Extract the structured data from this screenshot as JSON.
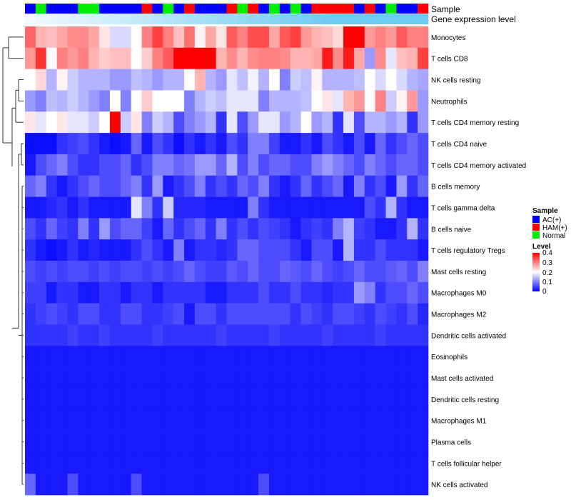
{
  "chart_data": {
    "type": "heatmap",
    "title": "",
    "annotation_tracks": [
      "Sample",
      "Gene expression level"
    ],
    "rows": [
      "Monocytes",
      "T cells CD8",
      "NK cells resting",
      "Neutrophils",
      "T cells CD4 memory resting",
      "T cells CD4 naive",
      "T cells CD4 memory activated",
      "B cells memory",
      "T cells gamma delta",
      "B cells naive",
      "T cells regulatory  Tregs",
      "Mast cells resting",
      "Macrophages M0",
      "Macrophages M2",
      "Dendritic cells activated",
      "Eosinophils",
      "Mast cells activated",
      "Dendritic cells resting",
      "Macrophages M1",
      "Plasma cells",
      "T cells follicular helper",
      "NK cells activated"
    ],
    "sample_groups": [
      "AC(+)",
      "Normal",
      "AC(+)",
      "AC(+)",
      "AC(+)",
      "Normal",
      "Normal",
      "AC(+)",
      "AC(+)",
      "AC(+)",
      "AC(+)",
      "HAM(+)",
      "AC(+)",
      "Normal",
      "AC(+)",
      "HAM(+)",
      "AC(+)",
      "AC(+)",
      "AC(+)",
      "HAM(+)",
      "Normal",
      "HAM(+)",
      "AC(+)",
      "Normal",
      "AC(+)",
      "Normal",
      "AC(+)",
      "HAM(+)",
      "HAM(+)",
      "HAM(+)",
      "HAM(+)",
      "AC(+)",
      "HAM(+)",
      "AC(+)",
      "Normal",
      "AC(+)",
      "AC(+)",
      "HAM(+)"
    ],
    "gene_expression_level": [
      0.05,
      0.08,
      0.1,
      0.12,
      0.14,
      0.16,
      0.18,
      0.2,
      0.22,
      0.24,
      0.26,
      0.28,
      0.3,
      0.32,
      0.34,
      0.36,
      0.38,
      0.4,
      0.42,
      0.44,
      0.46,
      0.48,
      0.5,
      0.52,
      0.54,
      0.56,
      0.58,
      0.6,
      0.62,
      0.64,
      0.66,
      0.68,
      0.7,
      0.72,
      0.74,
      0.76,
      0.78,
      0.8
    ],
    "values": [
      [
        0.32,
        0.26,
        0.25,
        0.27,
        0.29,
        0.29,
        0.27,
        0.22,
        0.17,
        0.17,
        0.2,
        0.3,
        0.35,
        0.3,
        0.25,
        0.31,
        0.21,
        0.27,
        0.22,
        0.33,
        0.3,
        0.34,
        0.34,
        0.27,
        0.33,
        0.35,
        0.28,
        0.26,
        0.25,
        0.23,
        0.4,
        0.4,
        0.28,
        0.3,
        0.28,
        0.33,
        0.3,
        0.3
      ],
      [
        0.28,
        0.36,
        0.2,
        0.3,
        0.28,
        0.3,
        0.26,
        0.24,
        0.25,
        0.25,
        0.2,
        0.24,
        0.3,
        0.33,
        0.4,
        0.4,
        0.4,
        0.4,
        0.26,
        0.29,
        0.26,
        0.29,
        0.3,
        0.3,
        0.29,
        0.26,
        0.26,
        0.27,
        0.38,
        0.29,
        0.38,
        0.27,
        0.12,
        0.29,
        0.18,
        0.25,
        0.26,
        0.35
      ],
      [
        0.2,
        0.23,
        0.14,
        0.21,
        0.16,
        0.14,
        0.14,
        0.14,
        0.12,
        0.12,
        0.15,
        0.14,
        0.12,
        0.14,
        0.14,
        0.2,
        0.26,
        0.14,
        0.12,
        0.18,
        0.15,
        0.19,
        0.14,
        0.2,
        0.1,
        0.16,
        0.15,
        0.21,
        0.14,
        0.14,
        0.14,
        0.15,
        0.2,
        0.17,
        0.2,
        0.17,
        0.14,
        0.13
      ],
      [
        0.12,
        0.1,
        0.15,
        0.14,
        0.16,
        0.14,
        0.12,
        0.1,
        0.2,
        0.1,
        0.2,
        0.24,
        0.2,
        0.2,
        0.2,
        0.1,
        0.14,
        0.16,
        0.15,
        0.18,
        0.18,
        0.18,
        0.1,
        0.14,
        0.14,
        0.14,
        0.15,
        0.2,
        0.22,
        0.18,
        0.26,
        0.28,
        0.2,
        0.3,
        0.16,
        0.21,
        0.28,
        0.12
      ],
      [
        0.22,
        0.18,
        0.2,
        0.22,
        0.18,
        0.18,
        0.16,
        0.2,
        0.4,
        0.16,
        0.22,
        0.1,
        0.16,
        0.14,
        0.06,
        0.1,
        0.12,
        0.14,
        0.04,
        0.18,
        0.06,
        0.12,
        0.18,
        0.18,
        0.12,
        0.14,
        0.2,
        0.12,
        0.14,
        0.04,
        0.18,
        0.06,
        0.14,
        0.14,
        0.12,
        0.14,
        0.04,
        0.12
      ],
      [
        0.01,
        0.01,
        0.01,
        0.04,
        0.05,
        0.06,
        0.04,
        0.02,
        0.01,
        0.02,
        0.08,
        0.02,
        0.06,
        0.04,
        0.01,
        0.04,
        0.02,
        0.04,
        0.02,
        0.06,
        0.04,
        0.1,
        0.1,
        0.05,
        0.02,
        0.02,
        0.04,
        0.02,
        0.06,
        0.04,
        0.02,
        0.06,
        0.02,
        0.08,
        0.04,
        0.06,
        0.08,
        0.06
      ],
      [
        0.02,
        0.06,
        0.08,
        0.1,
        0.06,
        0.04,
        0.04,
        0.06,
        0.06,
        0.08,
        0.04,
        0.06,
        0.1,
        0.1,
        0.08,
        0.09,
        0.12,
        0.12,
        0.08,
        0.14,
        0.06,
        0.1,
        0.06,
        0.08,
        0.08,
        0.06,
        0.06,
        0.1,
        0.12,
        0.1,
        0.08,
        0.06,
        0.1,
        0.08,
        0.06,
        0.08,
        0.08,
        0.06
      ],
      [
        0.08,
        0.1,
        0.04,
        0.02,
        0.04,
        0.06,
        0.08,
        0.06,
        0.06,
        0.08,
        0.1,
        0.04,
        0.12,
        0.02,
        0.04,
        0.06,
        0.1,
        0.04,
        0.06,
        0.04,
        0.08,
        0.06,
        0.1,
        0.04,
        0.02,
        0.04,
        0.08,
        0.04,
        0.06,
        0.08,
        0.02,
        0.1,
        0.04,
        0.06,
        0.02,
        0.12,
        0.04,
        0.08
      ],
      [
        0.02,
        0.02,
        0.03,
        0.04,
        0.02,
        0.04,
        0.02,
        0.02,
        0.02,
        0.02,
        0.18,
        0.1,
        0.04,
        0.16,
        0.03,
        0.03,
        0.03,
        0.02,
        0.02,
        0.02,
        0.02,
        0.1,
        0.04,
        0.02,
        0.02,
        0.02,
        0.02,
        0.02,
        0.02,
        0.02,
        0.02,
        0.02,
        0.06,
        0.04,
        0.14,
        0.04,
        0.02,
        0.02
      ],
      [
        0.06,
        0.04,
        0.08,
        0.05,
        0.04,
        0.1,
        0.04,
        0.12,
        0.06,
        0.08,
        0.08,
        0.05,
        0.02,
        0.08,
        0.04,
        0.06,
        0.08,
        0.04,
        0.1,
        0.04,
        0.06,
        0.04,
        0.06,
        0.05,
        0.04,
        0.02,
        0.04,
        0.05,
        0.04,
        0.1,
        0.14,
        0.05,
        0.04,
        0.02,
        0.02,
        0.04,
        0.14,
        0.04
      ],
      [
        0.04,
        0.02,
        0.01,
        0.02,
        0.04,
        0.02,
        0.03,
        0.02,
        0.02,
        0.02,
        0.04,
        0.06,
        0.04,
        0.02,
        0.1,
        0.02,
        0.04,
        0.04,
        0.03,
        0.04,
        0.08,
        0.08,
        0.06,
        0.06,
        0.06,
        0.04,
        0.02,
        0.06,
        0.06,
        0.02,
        0.14,
        0.04,
        0.04,
        0.06,
        0.04,
        0.04,
        0.04,
        0.02
      ],
      [
        0.06,
        0.05,
        0.06,
        0.05,
        0.06,
        0.06,
        0.05,
        0.06,
        0.05,
        0.06,
        0.06,
        0.05,
        0.06,
        0.05,
        0.06,
        0.08,
        0.06,
        0.05,
        0.05,
        0.07,
        0.06,
        0.08,
        0.06,
        0.06,
        0.08,
        0.07,
        0.06,
        0.08,
        0.06,
        0.05,
        0.06,
        0.08,
        0.06,
        0.06,
        0.07,
        0.08,
        0.06,
        0.1
      ],
      [
        0.05,
        0.05,
        0.02,
        0.04,
        0.04,
        0.02,
        0.02,
        0.04,
        0.04,
        0.02,
        0.04,
        0.04,
        0.02,
        0.04,
        0.04,
        0.04,
        0.04,
        0.02,
        0.02,
        0.04,
        0.04,
        0.04,
        0.06,
        0.04,
        0.04,
        0.06,
        0.04,
        0.04,
        0.03,
        0.04,
        0.04,
        0.12,
        0.1,
        0.04,
        0.06,
        0.06,
        0.08,
        0.06
      ],
      [
        0.04,
        0.05,
        0.06,
        0.05,
        0.04,
        0.06,
        0.06,
        0.04,
        0.04,
        0.06,
        0.06,
        0.04,
        0.04,
        0.05,
        0.06,
        0.02,
        0.06,
        0.06,
        0.04,
        0.06,
        0.06,
        0.06,
        0.06,
        0.06,
        0.06,
        0.04,
        0.06,
        0.05,
        0.04,
        0.06,
        0.06,
        0.05,
        0.04,
        0.06,
        0.05,
        0.04,
        0.06,
        0.03
      ],
      [
        0.04,
        0.04,
        0.04,
        0.04,
        0.05,
        0.04,
        0.04,
        0.05,
        0.04,
        0.04,
        0.04,
        0.04,
        0.05,
        0.04,
        0.04,
        0.04,
        0.04,
        0.04,
        0.05,
        0.04,
        0.04,
        0.04,
        0.04,
        0.05,
        0.04,
        0.04,
        0.04,
        0.04,
        0.05,
        0.04,
        0.04,
        0.04,
        0.04,
        0.05,
        0.04,
        0.04,
        0.04,
        0.04
      ],
      [
        0.02,
        0.02,
        0.02,
        0.02,
        0.02,
        0.02,
        0.02,
        0.02,
        0.02,
        0.02,
        0.02,
        0.02,
        0.02,
        0.02,
        0.02,
        0.02,
        0.02,
        0.02,
        0.02,
        0.02,
        0.02,
        0.02,
        0.02,
        0.02,
        0.02,
        0.02,
        0.02,
        0.02,
        0.02,
        0.02,
        0.02,
        0.02,
        0.02,
        0.02,
        0.02,
        0.02,
        0.02,
        0.02
      ],
      [
        0.02,
        0.02,
        0.02,
        0.02,
        0.02,
        0.02,
        0.02,
        0.02,
        0.02,
        0.02,
        0.02,
        0.02,
        0.02,
        0.02,
        0.02,
        0.02,
        0.02,
        0.02,
        0.02,
        0.02,
        0.02,
        0.02,
        0.02,
        0.02,
        0.02,
        0.02,
        0.02,
        0.02,
        0.02,
        0.02,
        0.02,
        0.02,
        0.02,
        0.02,
        0.02,
        0.02,
        0.02,
        0.02
      ],
      [
        0.02,
        0.02,
        0.02,
        0.02,
        0.02,
        0.02,
        0.02,
        0.02,
        0.02,
        0.02,
        0.02,
        0.02,
        0.02,
        0.02,
        0.02,
        0.02,
        0.02,
        0.02,
        0.02,
        0.02,
        0.02,
        0.02,
        0.02,
        0.02,
        0.02,
        0.02,
        0.02,
        0.02,
        0.02,
        0.02,
        0.02,
        0.02,
        0.02,
        0.02,
        0.02,
        0.02,
        0.02,
        0.02
      ],
      [
        0.02,
        0.02,
        0.02,
        0.02,
        0.02,
        0.02,
        0.02,
        0.02,
        0.02,
        0.02,
        0.02,
        0.02,
        0.02,
        0.02,
        0.02,
        0.02,
        0.02,
        0.02,
        0.02,
        0.02,
        0.02,
        0.02,
        0.02,
        0.02,
        0.02,
        0.02,
        0.02,
        0.02,
        0.02,
        0.02,
        0.02,
        0.02,
        0.02,
        0.02,
        0.02,
        0.02,
        0.02,
        0.02
      ],
      [
        0.02,
        0.02,
        0.02,
        0.02,
        0.02,
        0.02,
        0.02,
        0.02,
        0.02,
        0.02,
        0.02,
        0.02,
        0.02,
        0.02,
        0.02,
        0.02,
        0.02,
        0.02,
        0.02,
        0.02,
        0.02,
        0.02,
        0.02,
        0.02,
        0.02,
        0.02,
        0.02,
        0.02,
        0.02,
        0.02,
        0.02,
        0.02,
        0.02,
        0.02,
        0.02,
        0.02,
        0.02,
        0.02
      ],
      [
        0.02,
        0.02,
        0.02,
        0.02,
        0.02,
        0.02,
        0.02,
        0.02,
        0.02,
        0.02,
        0.02,
        0.02,
        0.02,
        0.02,
        0.02,
        0.02,
        0.02,
        0.02,
        0.02,
        0.02,
        0.02,
        0.02,
        0.02,
        0.02,
        0.02,
        0.02,
        0.02,
        0.02,
        0.02,
        0.02,
        0.02,
        0.02,
        0.02,
        0.02,
        0.02,
        0.02,
        0.02,
        0.02
      ],
      [
        0.08,
        0.02,
        0.02,
        0.02,
        0.06,
        0.02,
        0.02,
        0.02,
        0.02,
        0.02,
        0.06,
        0.02,
        0.02,
        0.02,
        0.02,
        0.02,
        0.02,
        0.02,
        0.02,
        0.02,
        0.02,
        0.02,
        0.06,
        0.02,
        0.02,
        0.02,
        0.02,
        0.02,
        0.02,
        0.02,
        0.02,
        0.02,
        0.02,
        0.02,
        0.02,
        0.02,
        0.02,
        0.02
      ]
    ],
    "color_scale": {
      "min": 0,
      "mid": 0.2,
      "max": 0.4,
      "low": "#0000ff",
      "mid_color": "#ffffff",
      "high": "#ff0000"
    },
    "legend": {
      "sample_title": "Sample",
      "sample_entries": [
        {
          "label": "AC(+)",
          "color": "#0000ff"
        },
        {
          "label": "HAM(+)",
          "color": "#ff0000"
        },
        {
          "label": "Normal",
          "color": "#00ee00"
        }
      ],
      "level_title": "Level",
      "level_ticks": [
        "0.4",
        "0.3",
        "0.2",
        "0.1",
        "0"
      ],
      "placement": "right"
    },
    "expression_gradient": {
      "low": "#ffffff",
      "high": "#6ecbf0"
    }
  }
}
